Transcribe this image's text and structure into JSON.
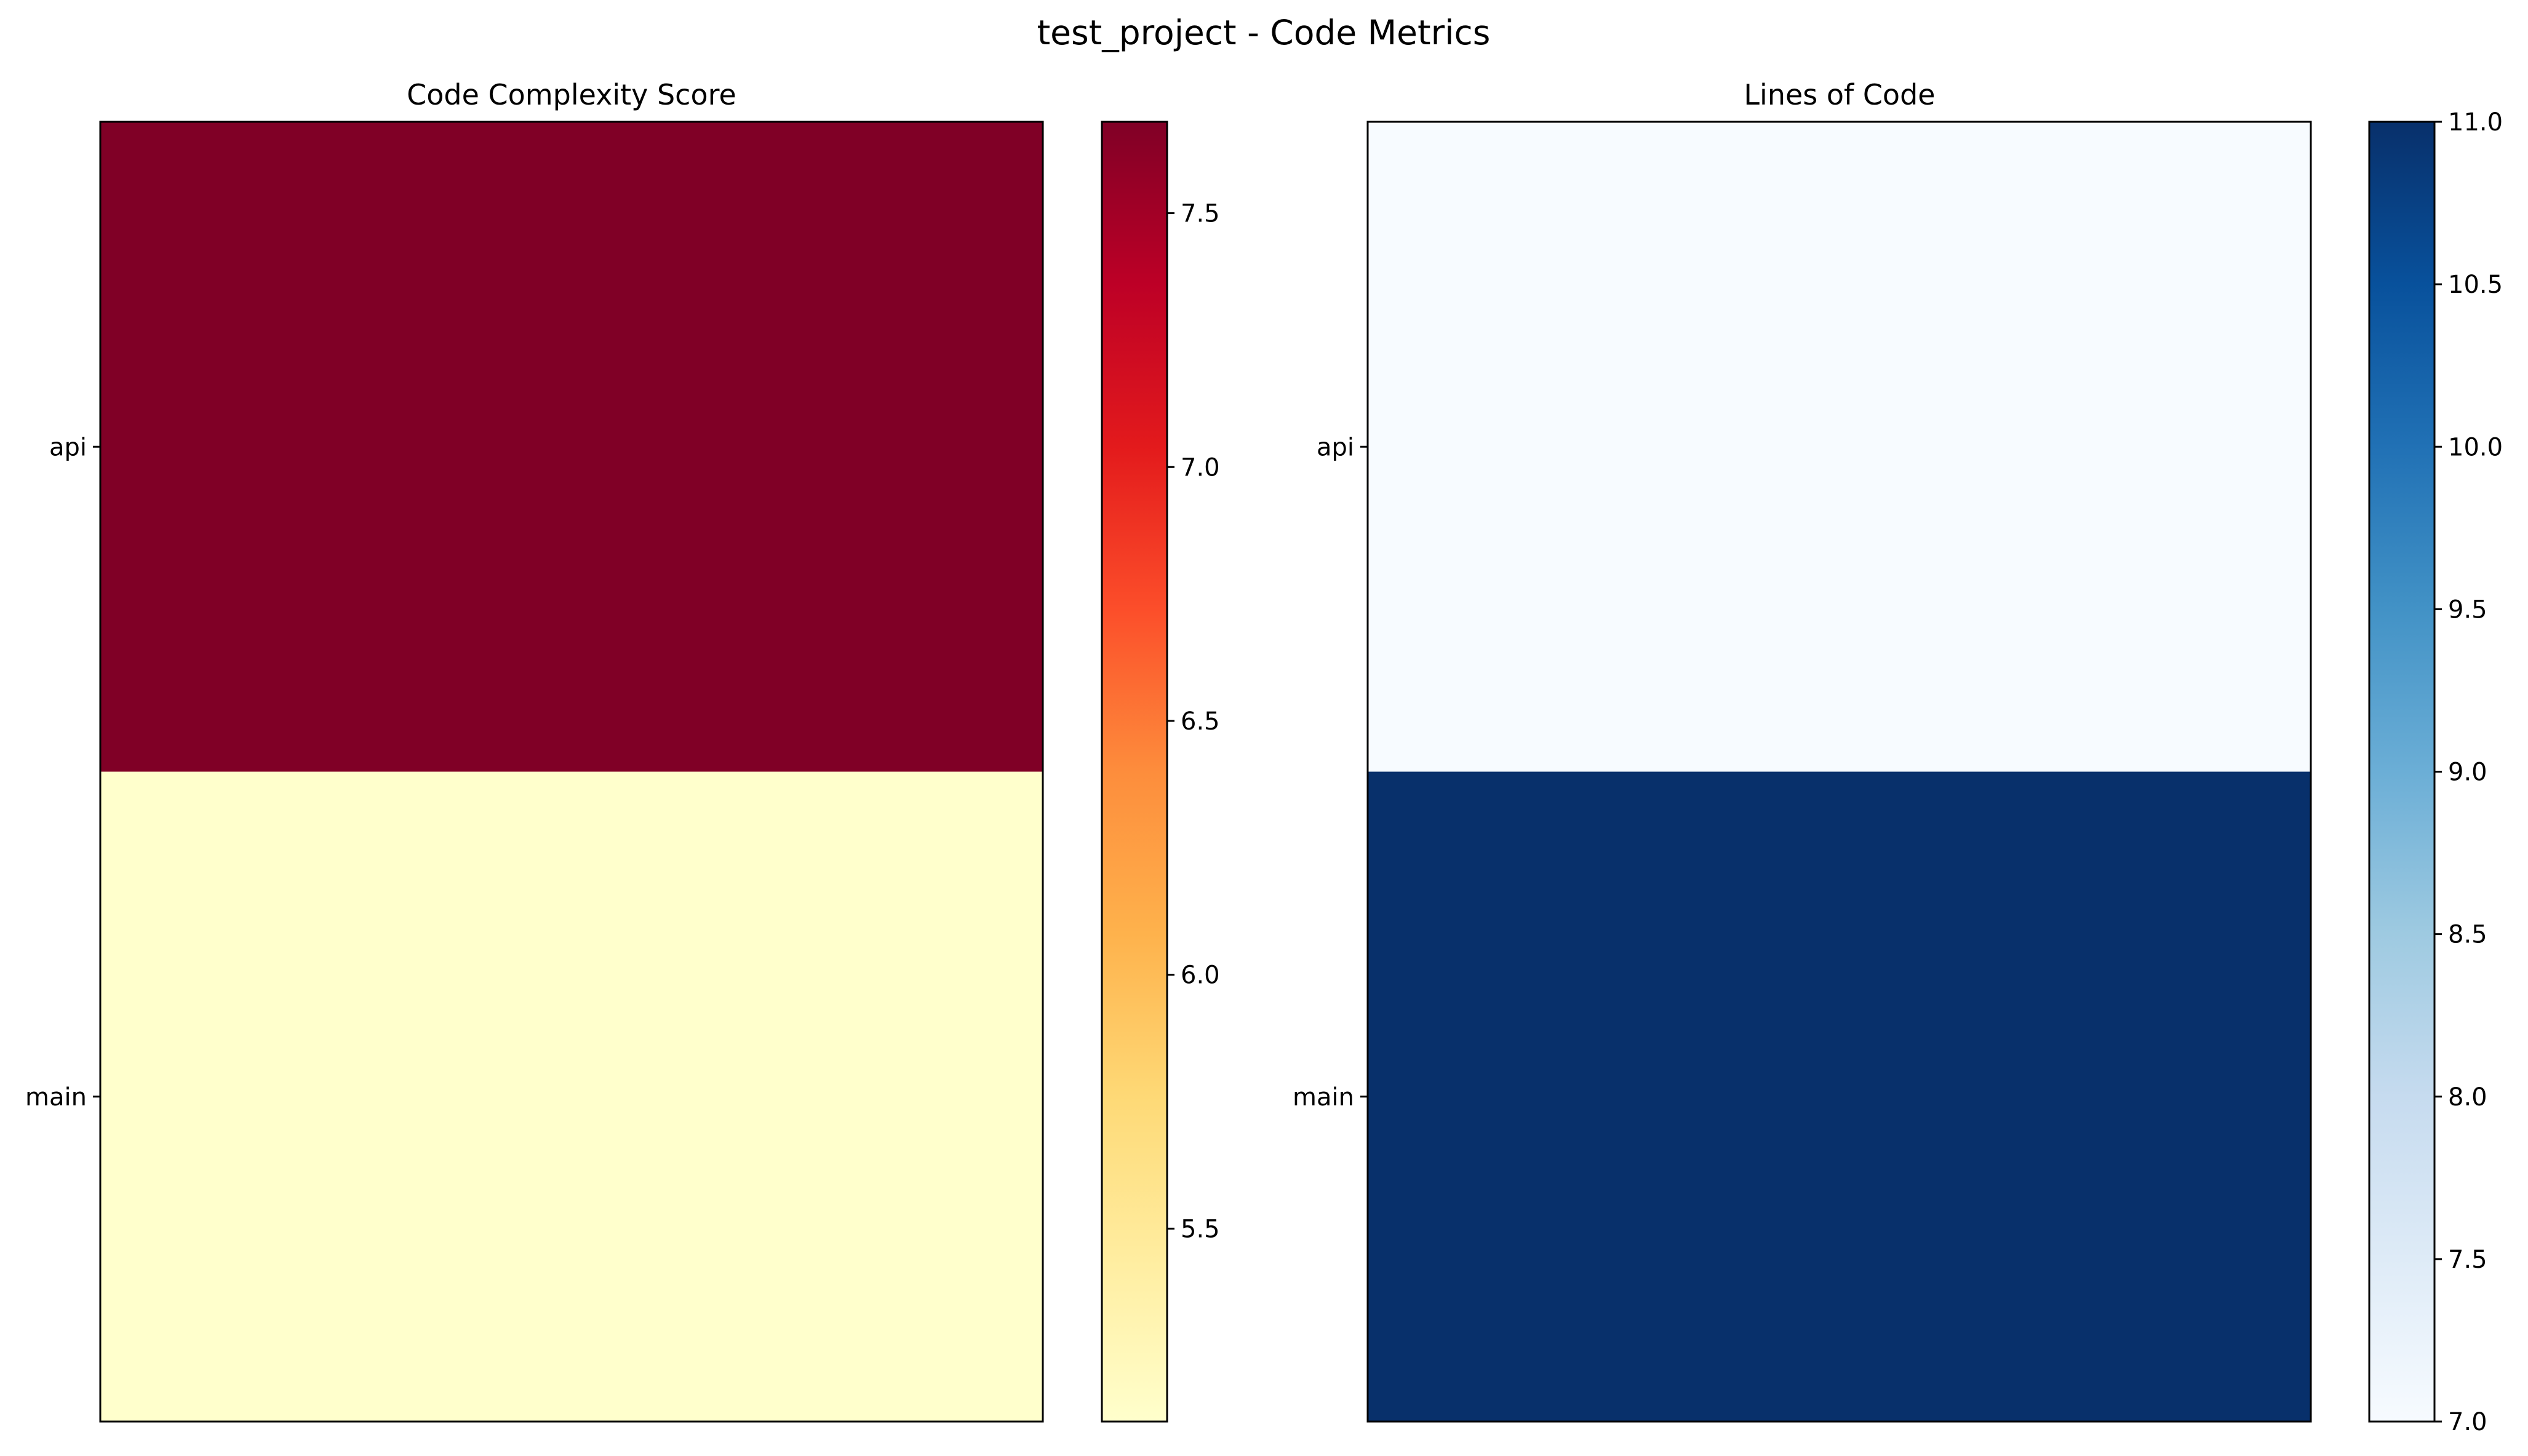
{
  "figure_title": "test_project - Code Metrics",
  "chart_data": [
    {
      "type": "heatmap",
      "title": "Code Complexity Score",
      "rows": [
        "api",
        "main"
      ],
      "columns": [
        ""
      ],
      "values": [
        [
          7.68
        ],
        [
          5.12
        ]
      ],
      "colormap": "YlOrRd",
      "colorbar": {
        "range": [
          5.12,
          7.68
        ],
        "ticks": [
          5.5,
          6.0,
          6.5,
          7.0,
          7.5
        ],
        "tick_labels": [
          "5.5",
          "6.0",
          "6.5",
          "7.0",
          "7.5"
        ]
      }
    },
    {
      "type": "heatmap",
      "title": "Lines of Code",
      "rows": [
        "api",
        "main"
      ],
      "columns": [
        ""
      ],
      "values": [
        [
          7
        ],
        [
          11
        ]
      ],
      "colormap": "Blues",
      "colorbar": {
        "range": [
          7,
          11
        ],
        "ticks": [
          7.0,
          7.5,
          8.0,
          8.5,
          9.0,
          9.5,
          10.0,
          10.5,
          11.0
        ],
        "tick_labels": [
          "7.0",
          "7.5",
          "8.0",
          "8.5",
          "9.0",
          "9.5",
          "10.0",
          "10.5",
          "11.0"
        ]
      }
    }
  ],
  "colors": {
    "YlOrRd": [
      "#ffffcc",
      "#ffeda0",
      "#fed976",
      "#feb24c",
      "#fd8d3c",
      "#fc4e2a",
      "#e31a1c",
      "#bd0026",
      "#800026"
    ],
    "Blues": [
      "#f7fbff",
      "#deebf7",
      "#c6dbef",
      "#9ecae1",
      "#6baed6",
      "#4292c6",
      "#2171b5",
      "#08519c",
      "#08306b"
    ]
  }
}
